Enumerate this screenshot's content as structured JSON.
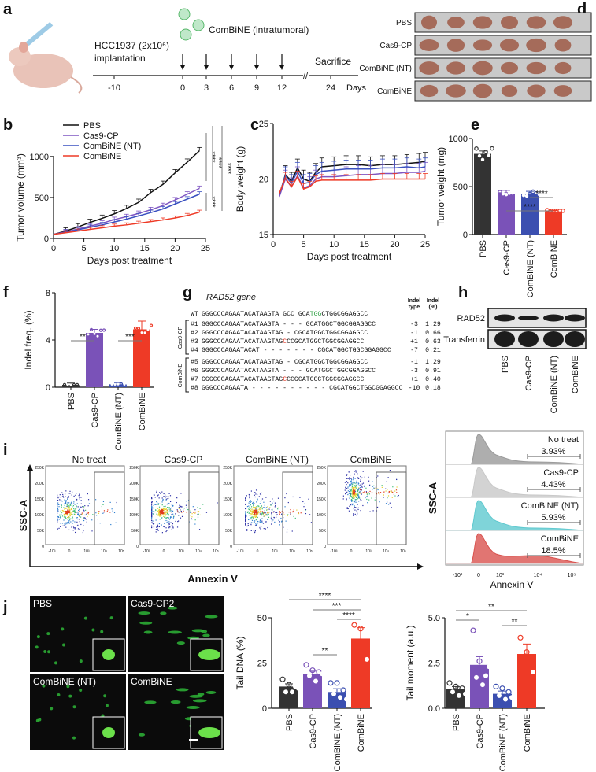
{
  "panel_labels": {
    "a": "a",
    "b": "b",
    "c": "c",
    "d": "d",
    "e": "e",
    "f": "f",
    "g": "g",
    "h": "h",
    "i": "i",
    "j": "j"
  },
  "panel_a": {
    "cell_line": "HCC1937 (2x10⁶)",
    "implantation": "implantation",
    "treatment": "ComBiNE (intratumoral)",
    "sacrifice": "Sacrifice",
    "days_label": "Days",
    "ticks": [
      "-10",
      "0",
      "3",
      "6",
      "9",
      "12",
      "24"
    ],
    "break_mark": "//"
  },
  "panel_d": {
    "rows": [
      "PBS",
      "Cas9-CP",
      "ComBiNE (NT)",
      "ComBiNE"
    ]
  },
  "panel_g": {
    "gene": "RAD52",
    "gene_suffix": " gene",
    "col_type": [
      "Indel",
      "type"
    ],
    "col_pct": [
      "Indel",
      "(%)"
    ],
    "wt": {
      "id": "WT",
      "pre": "GGGCCCAGAATACATAAGTA GCC GCA",
      "hl": "TGG",
      "post": "CTGGCGGAGGCC"
    },
    "groups": [
      {
        "name": "Cas9-CP",
        "rows": [
          {
            "id": "#1",
            "pre": "GGGCCCAGAATACATAAGTA - - -  GCATGGCTGGCGGAGGCC",
            "hl": "",
            "post": "",
            "type": "-3",
            "pct": "1.29"
          },
          {
            "id": "#2",
            "pre": "GGGCCCAGAATACATAAGTAG -  CGCATGGCTGGCGGAGGCC",
            "hl": "",
            "post": "",
            "type": "-1",
            "pct": "0.66"
          },
          {
            "id": "#3",
            "pre": "GGGCCCAGAATACATAAGTAG",
            "hl": "C",
            "post": "CCGCATGGCTGGCGGAGGCC",
            "type": "+1",
            "pct": "0.63"
          },
          {
            "id": "#4",
            "pre": "GGGCCCAGAATACAT - - - - - - -  CGCATGGCTGGCGGAGGCC",
            "hl": "",
            "post": "",
            "type": "-7",
            "pct": "0.21"
          }
        ]
      },
      {
        "name": "ComBiNE",
        "rows": [
          {
            "id": "#5",
            "pre": "GGGCCCAGAATACATAAGTAG -  CGCATGGCTGGCGGAGGCC",
            "hl": "",
            "post": "",
            "type": "-1",
            "pct": "1.29"
          },
          {
            "id": "#6",
            "pre": "GGGCCCAGAATACATAAGTA - - -  GCATGGCTGGCGGAGGCC",
            "hl": "",
            "post": "",
            "type": "-3",
            "pct": "0.91"
          },
          {
            "id": "#7",
            "pre": "GGGCCCAGAATACATAAGTAG",
            "hl": "C",
            "post": "CCGCATGGCTGGCGGAGGCC",
            "type": "+1",
            "pct": "0.40"
          },
          {
            "id": "#8",
            "pre": "GGGCCCAGAATA - - - - - - - - - -  CGCATGGCTGGCGGAGGCC",
            "hl": "",
            "post": "",
            "type": "-10",
            "pct": "0.18"
          }
        ]
      }
    ]
  },
  "panel_h": {
    "bands": [
      "RAD52",
      "Transferrin"
    ],
    "lanes": [
      "PBS",
      "Cas9-CP",
      "ComBiNE (NT)",
      "ComBiNE"
    ]
  },
  "panel_i": {
    "scatter_titles": [
      "No treat",
      "Cas9-CP",
      "ComBiNE (NT)",
      "ComBiNE"
    ],
    "ylabel": "SSC-A",
    "xlabel": "Annexin V",
    "y_ticks": [
      "250K",
      "200K",
      "150K",
      "100K",
      "50K",
      "0"
    ],
    "x_ticks": [
      "-10³",
      "0",
      "10³",
      "10⁴",
      "10⁵"
    ],
    "histogram": {
      "ylabel": "SSC-A",
      "xlabel": "Annexin V",
      "x_ticks": [
        "-10³",
        "0",
        "10³",
        "10⁴",
        "10⁵"
      ],
      "rows": [
        {
          "label": "No treat",
          "pct": "3.93%",
          "color": "#9a9a9a"
        },
        {
          "label": "Cas9-CP",
          "pct": "4.43%",
          "color": "#c8c8c8"
        },
        {
          "label": "ComBiNE (NT)",
          "pct": "5.93%",
          "color": "#5fc9cf"
        },
        {
          "label": "ComBiNE",
          "pct": "18.5%",
          "color": "#d9534f"
        }
      ]
    }
  },
  "panel_j": {
    "image_labels": [
      "PBS",
      "Cas9-CP2",
      "ComBiNE (NT)",
      "ComBiNE"
    ]
  },
  "colors": {
    "PBS": "#111111",
    "Cas9-CP": "#7f56c2",
    "ComBiNE (NT)": "#3a50c0",
    "ComBiNE": "#ee3a26",
    "bar_PBS": "#333333",
    "bar_Cas9": "#7a52b8",
    "bar_NT": "#3b4fb0",
    "bar_ComBiNE": "#ee3a26"
  },
  "chart_data": [
    {
      "id": "b",
      "type": "line",
      "xlabel": "Days post treatment",
      "ylabel": "Tumor volume (mm³)",
      "xlim": [
        0,
        25
      ],
      "ylim": [
        0,
        1200
      ],
      "x_ticks": [
        "0",
        "5",
        "10",
        "15",
        "20",
        "25"
      ],
      "y_ticks": [
        "0",
        "500",
        "1000"
      ],
      "legend": "top-left",
      "x": [
        0,
        2,
        4,
        6,
        8,
        10,
        12,
        14,
        16,
        18,
        20,
        22,
        24
      ],
      "series": [
        {
          "name": "PBS",
          "values": [
            50,
            90,
            140,
            195,
            245,
            300,
            365,
            440,
            560,
            660,
            800,
            930,
            1070
          ],
          "err": 40
        },
        {
          "name": "Cas9-CP",
          "values": [
            50,
            80,
            115,
            150,
            185,
            230,
            265,
            305,
            350,
            400,
            470,
            540,
            610
          ],
          "err": 30
        },
        {
          "name": "ComBiNE (NT)",
          "values": [
            50,
            75,
            105,
            135,
            165,
            200,
            235,
            275,
            315,
            360,
            420,
            480,
            540
          ],
          "err": 30
        },
        {
          "name": "ComBiNE",
          "values": [
            50,
            70,
            90,
            110,
            130,
            150,
            165,
            185,
            205,
            225,
            250,
            280,
            320
          ],
          "err": 25
        }
      ],
      "significance": [
        "****",
        "****",
        "****",
        "****"
      ]
    },
    {
      "id": "c",
      "type": "line",
      "xlabel": "Days post treatment",
      "ylabel": "Body weight (g)",
      "xlim": [
        0,
        25
      ],
      "ylim": [
        15,
        25
      ],
      "x_ticks": [
        "0",
        "5",
        "10",
        "15",
        "20",
        "25"
      ],
      "y_ticks": [
        "15",
        "20",
        "25"
      ],
      "x": [
        1,
        2,
        3,
        4,
        5,
        6,
        7,
        8,
        10,
        12,
        14,
        16,
        18,
        20,
        22,
        24,
        25
      ],
      "series": [
        {
          "name": "PBS",
          "values": [
            18.5,
            20.4,
            19.8,
            21.0,
            20.0,
            19.8,
            20.6,
            21.1,
            21.2,
            21.3,
            21.3,
            21.2,
            21.3,
            21.3,
            21.4,
            21.5,
            21.6
          ],
          "err": 0.8
        },
        {
          "name": "Cas9-CP",
          "values": [
            18.4,
            20.0,
            19.3,
            20.3,
            19.2,
            19.4,
            20.0,
            20.2,
            20.2,
            20.3,
            20.4,
            20.4,
            20.5,
            20.5,
            20.6,
            20.6,
            20.7
          ],
          "err": 0.8
        },
        {
          "name": "ComBiNE (NT)",
          "values": [
            18.6,
            20.3,
            19.6,
            20.7,
            19.6,
            19.7,
            20.4,
            20.7,
            20.8,
            20.9,
            20.9,
            20.9,
            21.0,
            21.0,
            21.1,
            21.0,
            21.1
          ],
          "err": 0.8
        },
        {
          "name": "ComBiNE",
          "values": [
            18.7,
            20.1,
            19.3,
            20.2,
            19.1,
            19.3,
            19.8,
            19.9,
            19.9,
            19.9,
            19.9,
            19.9,
            20.0,
            20.0,
            20.0,
            20.0,
            20.0
          ],
          "err": 0.5
        }
      ]
    },
    {
      "id": "e",
      "type": "bar",
      "ylabel": "Tumor weight (mg)",
      "ylim": [
        0,
        1000
      ],
      "y_ticks": [
        "0",
        "500",
        "1000"
      ],
      "categories": [
        "PBS",
        "Cas9-CP",
        "ComBiNE (NT)",
        "ComBiNE"
      ],
      "values": [
        840,
        440,
        420,
        240
      ],
      "err": [
        30,
        20,
        30,
        10
      ],
      "significance": [
        {
          "from": 1,
          "to": 3,
          "label": "****"
        },
        {
          "from": 2,
          "to": 3,
          "label": "****"
        }
      ]
    },
    {
      "id": "f",
      "type": "bar",
      "ylabel": "Indel freq. (%)",
      "ylim": [
        0,
        8
      ],
      "y_ticks": [
        "0",
        "4",
        "8"
      ],
      "categories": [
        "PBS",
        "Cas9-CP",
        "ComBiNE (NT)",
        "ComBiNE"
      ],
      "values": [
        0.2,
        4.6,
        0.25,
        4.9
      ],
      "err": [
        0.15,
        0.3,
        0.1,
        0.7
      ],
      "significance": [
        {
          "from": 0,
          "to": 1,
          "label": "**"
        },
        {
          "from": 2,
          "to": 3,
          "label": "***"
        }
      ]
    },
    {
      "id": "j1",
      "type": "bar",
      "ylabel": "Tail DNA (%)",
      "ylim": [
        0,
        50
      ],
      "y_ticks": [
        "0",
        "25",
        "50"
      ],
      "categories": [
        "PBS",
        "Cas9-CP",
        "ComBiNE (NT)",
        "ComBiNE"
      ],
      "values": [
        12,
        19,
        9,
        38.5
      ],
      "err": [
        1.5,
        1.5,
        1.8,
        6
      ],
      "points": [
        [
          16,
          13,
          12,
          9,
          9,
          11
        ],
        [
          24,
          21,
          20,
          18,
          15,
          19
        ],
        [
          14,
          14,
          10,
          8,
          6,
          5
        ],
        [
          46,
          44,
          27
        ]
      ],
      "significance": [
        {
          "from": 0,
          "to": 3,
          "label": "****"
        },
        {
          "from": 1,
          "to": 3,
          "label": "***"
        },
        {
          "from": 2,
          "to": 3,
          "label": "****"
        },
        {
          "from": 1,
          "to": 2,
          "label": "**"
        }
      ]
    },
    {
      "id": "j2",
      "type": "bar",
      "ylabel": "Tail moment (a.u.)",
      "ylim": [
        0,
        5
      ],
      "y_ticks": [
        "0.0",
        "2.5",
        "5.0"
      ],
      "categories": [
        "PBS",
        "Cas9-CP",
        "ComBiNE (NT)",
        "ComBiNE"
      ],
      "values": [
        1.05,
        2.4,
        0.8,
        3.0
      ],
      "err": [
        0.15,
        0.45,
        0.15,
        0.55
      ],
      "points": [
        [
          1.4,
          1.2,
          1.1,
          0.9,
          0.7,
          0.8
        ],
        [
          4.3,
          2.6,
          1.8,
          1.7,
          1.3,
          2.3
        ],
        [
          1.2,
          1.1,
          0.9,
          0.7,
          0.5,
          0.6
        ],
        [
          3.9,
          3.1,
          2.0
        ]
      ],
      "significance": [
        {
          "from": 0,
          "to": 3,
          "label": "**"
        },
        {
          "from": 0,
          "to": 1,
          "label": "*"
        },
        {
          "from": 2,
          "to": 3,
          "label": "**"
        }
      ]
    }
  ]
}
